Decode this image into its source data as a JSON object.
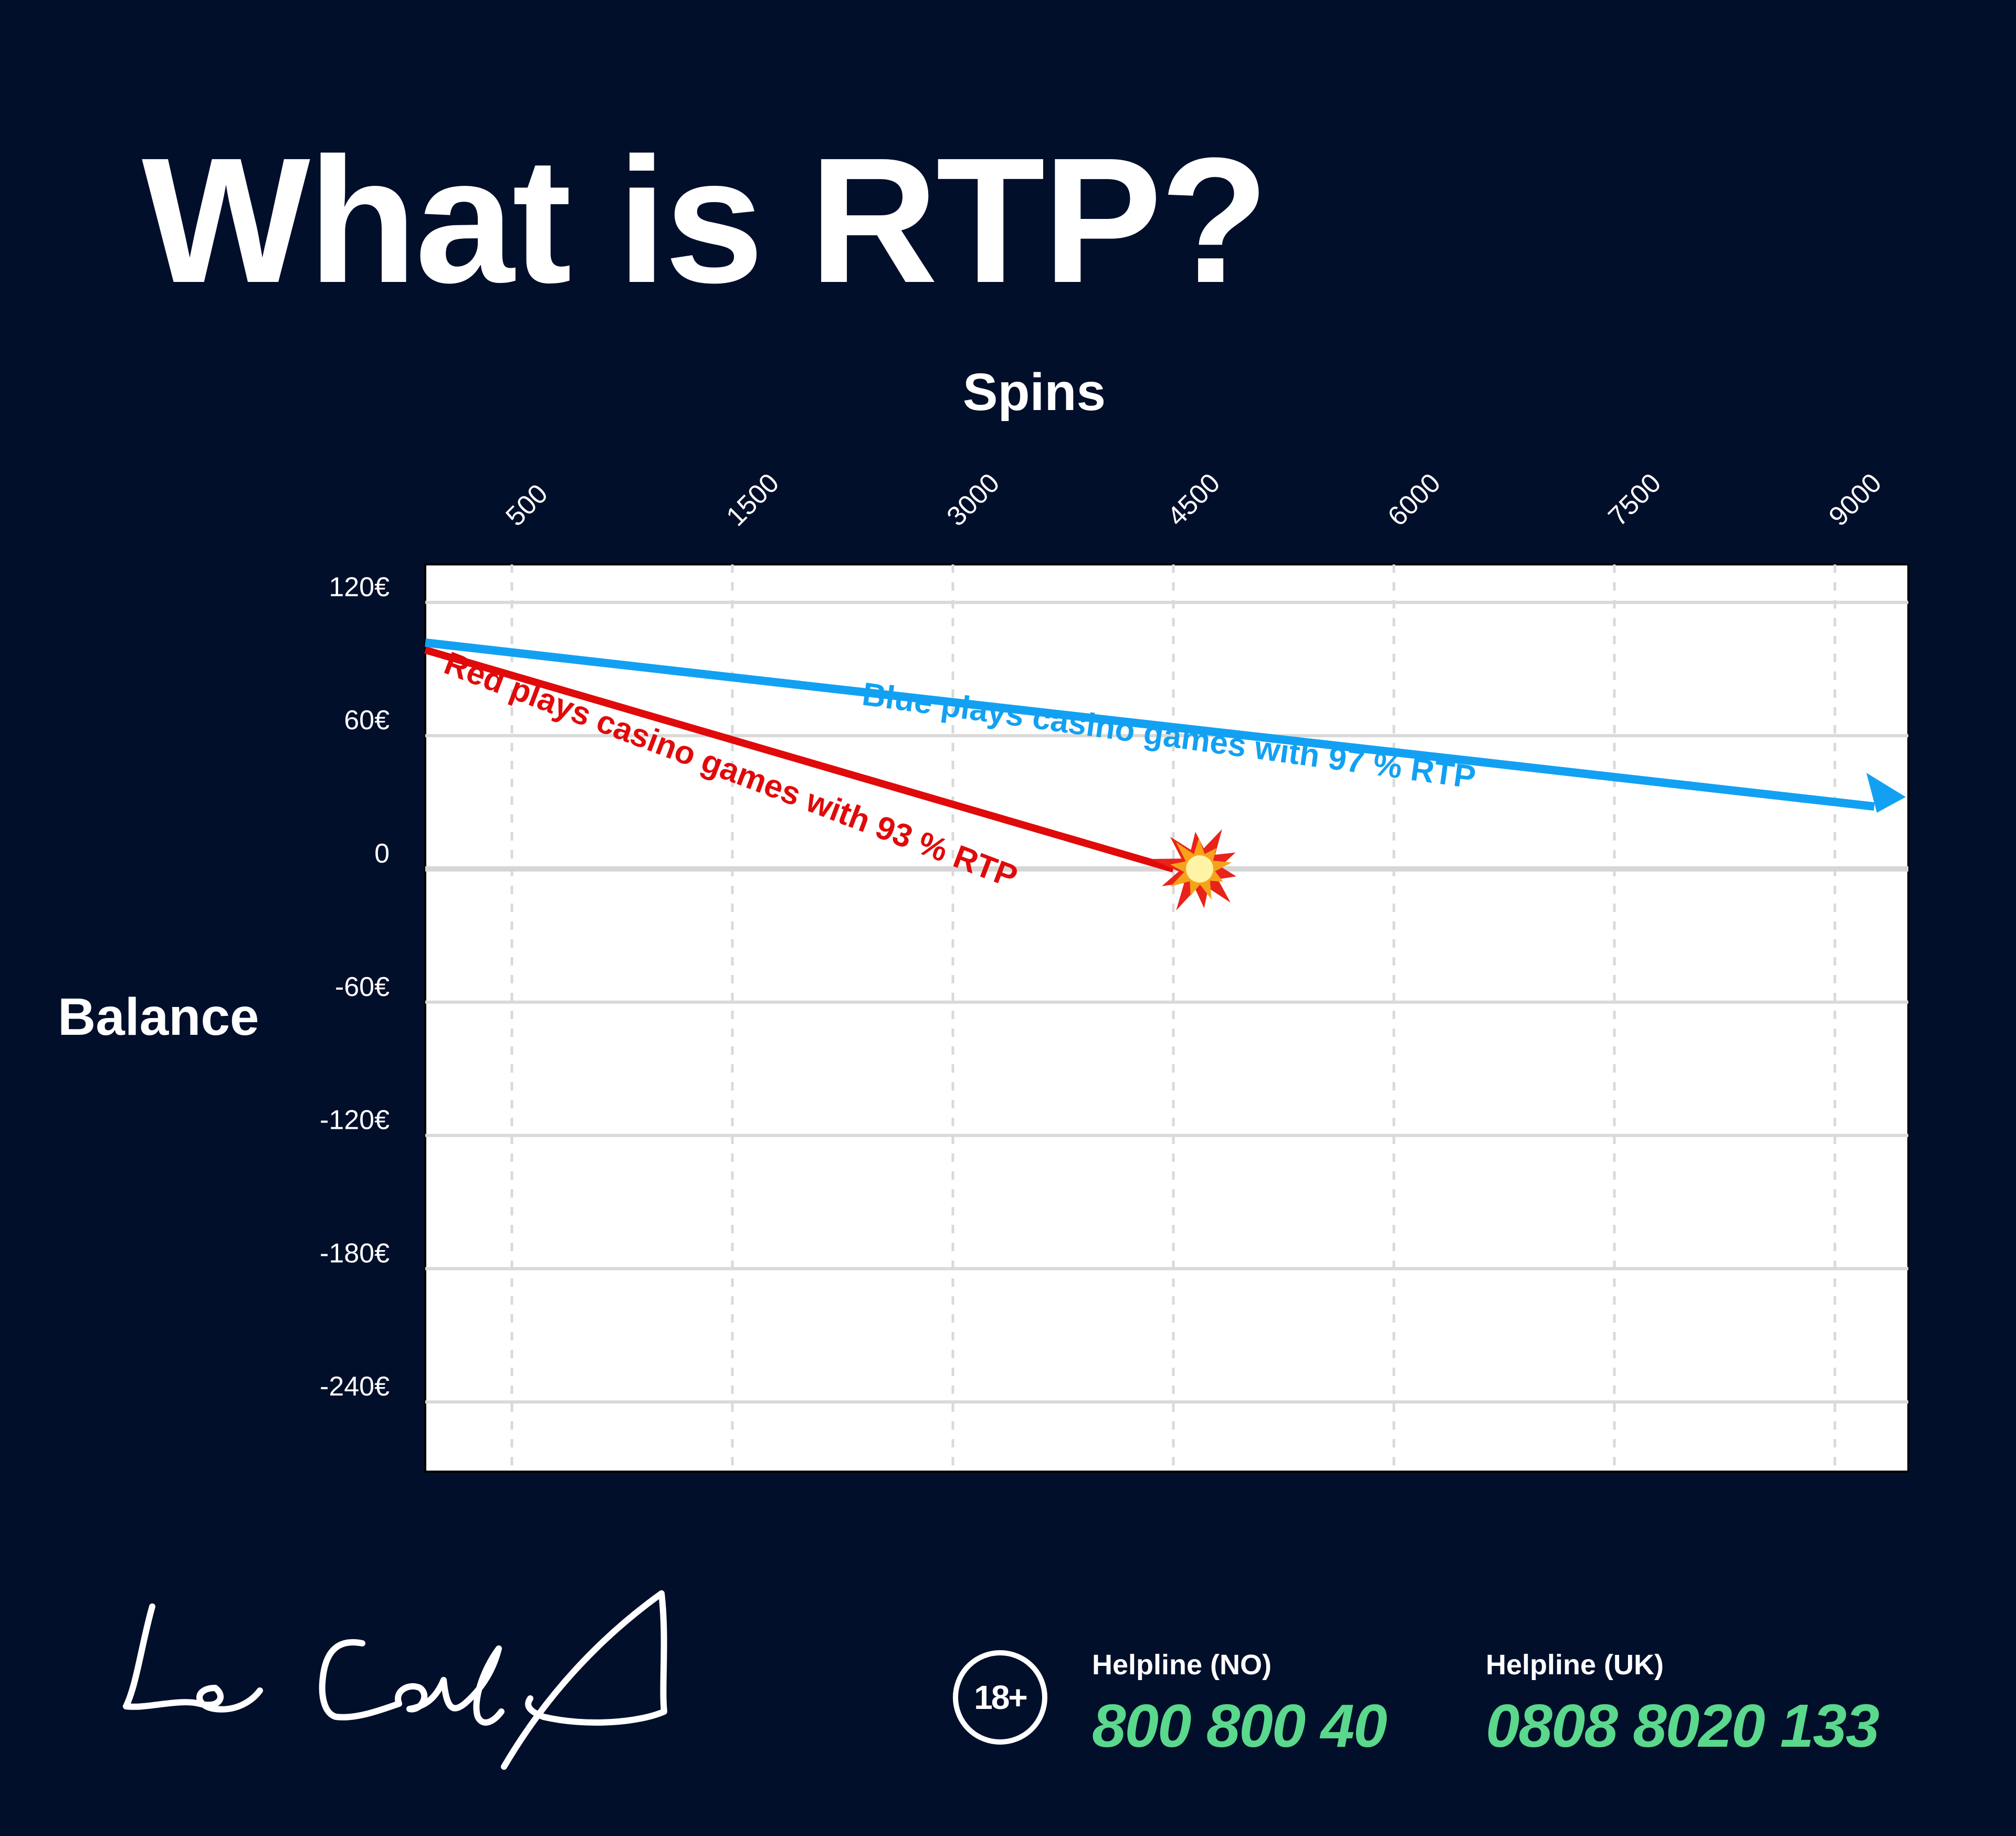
{
  "title": "What is RTP?",
  "chart_data": {
    "type": "line",
    "xlabel": "Spins",
    "ylabel": "Balance",
    "x_ticks": [
      "500",
      "1500",
      "3000",
      "4500",
      "6000",
      "7500",
      "9000"
    ],
    "y_ticks": [
      {
        "value": 120,
        "label": "120€"
      },
      {
        "value": 60,
        "label": "60€"
      },
      {
        "value": 0,
        "label": "0"
      },
      {
        "value": -60,
        "label": "-60€"
      },
      {
        "value": -120,
        "label": "-120€"
      },
      {
        "value": -180,
        "label": "-180€"
      },
      {
        "value": -240,
        "label": "-240€"
      }
    ],
    "ylim": [
      -270,
      140
    ],
    "grid": true,
    "series": [
      {
        "label": "Red plays casino games with 93 % RTP",
        "color": "#e00a0a",
        "points": [
          [
            0,
            100
          ],
          [
            4500,
            0
          ]
        ],
        "end_marker": "collision-icon"
      },
      {
        "label": "Blue plays casino games with 97 % RTP",
        "color": "#12a1f2",
        "points": [
          [
            0,
            100
          ],
          [
            9000,
            30
          ]
        ],
        "end_marker": "arrow"
      }
    ]
  },
  "footer": {
    "age_badge": "18+",
    "helplines": [
      {
        "label": "Helpline (NO)",
        "number": "800 800 40"
      },
      {
        "label": "Helpline (UK)",
        "number": "0808 8020 133"
      }
    ]
  }
}
